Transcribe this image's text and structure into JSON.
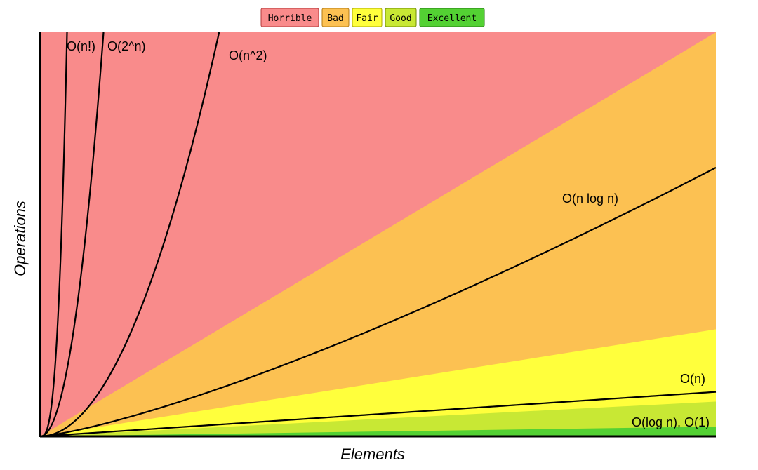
{
  "chart_data": {
    "type": "area",
    "title": "",
    "xlabel": "Elements",
    "ylabel": "Operations",
    "xlim": [
      0,
      100
    ],
    "ylim": [
      0,
      100
    ],
    "grid": false,
    "legend_position": "top-center",
    "legend": [
      {
        "label": "Horrible",
        "color": "#f98b8b",
        "border": "#b33a3a"
      },
      {
        "label": "Bad",
        "color": "#fcc152",
        "border": "#b37a12"
      },
      {
        "label": "Fair",
        "color": "#ffff3c",
        "border": "#a8a800"
      },
      {
        "label": "Good",
        "color": "#c8e834",
        "border": "#6e8a00"
      },
      {
        "label": "Excellent",
        "color": "#53d133",
        "border": "#257a10"
      }
    ],
    "regions": [
      {
        "name": "Horrible",
        "color": "#f98b8b",
        "upper_at_xmax": 100
      },
      {
        "name": "Bad",
        "color": "#fcc152",
        "upper_at_xmax": 100
      },
      {
        "name": "Fair",
        "color": "#ffff3c",
        "upper_at_xmax": 26.5
      },
      {
        "name": "Good",
        "color": "#c8e834",
        "upper_at_xmax": 8.6
      },
      {
        "name": "Excellent",
        "color": "#53d133",
        "upper_at_xmax": 2.4
      }
    ],
    "series": [
      {
        "name": "O(n!)",
        "kind": "factorial",
        "label": "O(n!)"
      },
      {
        "name": "O(2^n)",
        "kind": "exponential",
        "label": "O(2^n)"
      },
      {
        "name": "O(n^2)",
        "kind": "quadratic",
        "label": "O(n^2)"
      },
      {
        "name": "O(n log n)",
        "kind": "nlogn",
        "y_at_xmax": 66.5,
        "label": "O(n log n)"
      },
      {
        "name": "O(n)",
        "kind": "linear",
        "y_at_xmax": 11,
        "label": "O(n)"
      },
      {
        "name": "O(log n), O(1)",
        "kind": "flat",
        "y_at_xmax": 0,
        "label": "O(log n), O(1)"
      }
    ],
    "curve_params": {
      "factorial_x_at_top": 4,
      "exponential_x_at_top": 9.4,
      "quadratic_x_at_top": 26.5
    }
  }
}
